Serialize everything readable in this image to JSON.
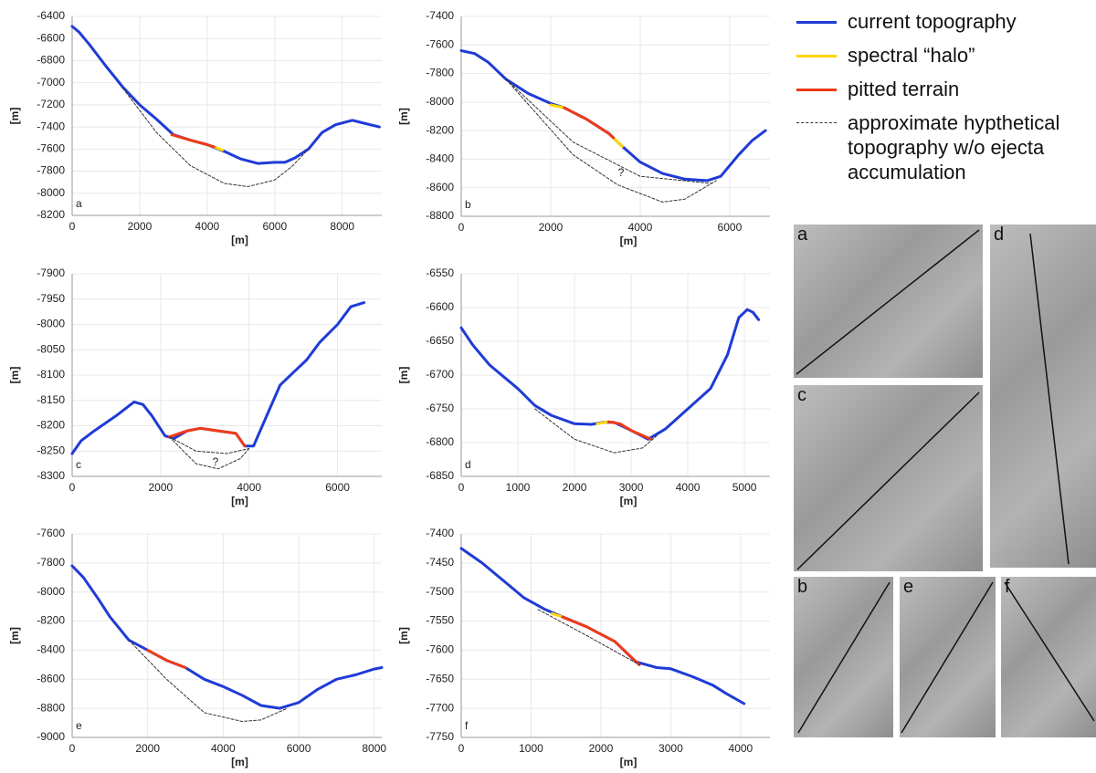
{
  "chart_data": [
    {
      "type": "line",
      "label": "a",
      "xlabel": "[m]",
      "ylabel": "[m]",
      "grid": true,
      "xlim": [
        0,
        9170
      ],
      "ylim": [
        -8200,
        -6400
      ],
      "xticks": [
        0,
        2000,
        4000,
        6000,
        8000
      ],
      "yticks": [
        -6400,
        -6600,
        -6800,
        -7000,
        -7200,
        -7400,
        -7600,
        -7800,
        -8000,
        -8200
      ],
      "series": [
        {
          "name": "current topography",
          "color": "#1f3bd6",
          "linestyle": "solid",
          "x": [
            0,
            200,
            500,
            1000,
            1500,
            2000,
            2500,
            3000,
            3500,
            4000,
            4500,
            5000,
            5500,
            6000,
            6300,
            6600,
            7000,
            7400,
            7800,
            8300,
            8700,
            9100
          ],
          "values": [
            -6490,
            -6540,
            -6650,
            -6850,
            -7040,
            -7200,
            -7330,
            -7470,
            -7520,
            -7560,
            -7620,
            -7690,
            -7730,
            -7720,
            -7720,
            -7680,
            -7600,
            -7450,
            -7380,
            -7340,
            -7370,
            -7400
          ]
        },
        {
          "name": "spectral “halo”",
          "color": "#ffd700",
          "linestyle": "solid",
          "x": [
            4200,
            4450
          ],
          "values": [
            -7580,
            -7610
          ]
        },
        {
          "name": "pitted terrain",
          "color": "#f03a17",
          "linestyle": "solid",
          "x": [
            2950,
            3500,
            4000,
            4200
          ],
          "values": [
            -7470,
            -7520,
            -7560,
            -7580
          ]
        },
        {
          "name": "approximate hypthetical topography w/o ejecta accumulation",
          "color": "#333333",
          "linestyle": "dashed",
          "x": [
            1500,
            2500,
            3500,
            4500,
            5200,
            6000,
            6500,
            7000
          ],
          "values": [
            -7050,
            -7450,
            -7750,
            -7910,
            -7940,
            -7880,
            -7760,
            -7600
          ]
        }
      ]
    },
    {
      "type": "line",
      "label": "b",
      "xlabel": "[m]",
      "ylabel": "[m]",
      "grid": true,
      "annotations": [
        "?"
      ],
      "xlim": [
        0,
        6900
      ],
      "ylim": [
        -8800,
        -7400
      ],
      "xticks": [
        0,
        2000,
        4000,
        6000
      ],
      "yticks": [
        -7400,
        -7600,
        -7800,
        -8000,
        -8200,
        -8400,
        -8600,
        -8800
      ],
      "series": [
        {
          "color": "#1f3bd6",
          "linestyle": "solid",
          "x": [
            0,
            300,
            600,
            1000,
            1500,
            2000,
            2300,
            2800,
            3300,
            3600,
            4000,
            4500,
            5000,
            5500,
            5800,
            6200,
            6500,
            6800
          ],
          "values": [
            -7640,
            -7660,
            -7720,
            -7840,
            -7940,
            -8010,
            -8040,
            -8120,
            -8220,
            -8310,
            -8420,
            -8500,
            -8540,
            -8550,
            -8520,
            -8370,
            -8270,
            -8200
          ]
        },
        {
          "color": "#ffd700",
          "linestyle": "solid",
          "x": [
            2000,
            2300,
            null,
            3400,
            3600
          ],
          "values": [
            -8020,
            -8040,
            null,
            -8250,
            -8310
          ]
        },
        {
          "color": "#f03a17",
          "linestyle": "solid",
          "x": [
            2300,
            2800,
            3300,
            3400
          ],
          "values": [
            -8040,
            -8120,
            -8220,
            -8250
          ]
        },
        {
          "color": "#333333",
          "linestyle": "dashed",
          "x": [
            1000,
            2500,
            4000,
            5600,
            null,
            1000,
            2500,
            3500,
            4500,
            5000,
            5700
          ],
          "values": [
            -7840,
            -8280,
            -8520,
            -8570,
            null,
            -7840,
            -8370,
            -8580,
            -8700,
            -8680,
            -8550
          ]
        }
      ]
    },
    {
      "type": "line",
      "label": "c",
      "xlabel": "[m]",
      "ylabel": "[m]",
      "grid": true,
      "annotations": [
        "?"
      ],
      "xlim": [
        0,
        7000
      ],
      "ylim": [
        -8300,
        -7900
      ],
      "xticks": [
        0,
        2000,
        4000,
        6000
      ],
      "yticks": [
        -7900,
        -7950,
        -8000,
        -8050,
        -8100,
        -8150,
        -8200,
        -8250,
        -8300
      ],
      "series": [
        {
          "color": "#1f3bd6",
          "linestyle": "solid",
          "x": [
            0,
            200,
            500,
            1000,
            1400,
            1600,
            1800,
            2100,
            2300,
            2600,
            2900,
            3300,
            3700,
            3900,
            4100,
            4400,
            4700,
            5000,
            5300,
            5600,
            6000,
            6300,
            6600
          ],
          "values": [
            -8255,
            -8230,
            -8210,
            -8180,
            -8153,
            -8158,
            -8180,
            -8220,
            -8225,
            -8210,
            -8205,
            -8210,
            -8215,
            -8240,
            -8240,
            -8180,
            -8120,
            -8095,
            -8070,
            -8035,
            -8000,
            -7965,
            -7957
          ]
        },
        {
          "color": "#f03a17",
          "linestyle": "solid",
          "x": [
            2200,
            2600,
            2900,
            3300,
            3700,
            3900
          ],
          "values": [
            -8222,
            -8210,
            -8205,
            -8210,
            -8215,
            -8240
          ]
        },
        {
          "color": "#333333",
          "linestyle": "dashed",
          "x": [
            2200,
            2800,
            3500,
            4000,
            null,
            2200,
            2800,
            3300,
            3800,
            4000
          ],
          "values": [
            -8222,
            -8250,
            -8255,
            -8245,
            null,
            -8222,
            -8275,
            -8285,
            -8265,
            -8245
          ]
        }
      ]
    },
    {
      "type": "line",
      "label": "d",
      "xlabel": "[m]",
      "ylabel": "[m]",
      "grid": true,
      "xlim": [
        0,
        5450
      ],
      "ylim": [
        -6850,
        -6550
      ],
      "xticks": [
        0,
        1000,
        2000,
        3000,
        4000,
        5000
      ],
      "yticks": [
        -6550,
        -6600,
        -6650,
        -6700,
        -6750,
        -6800,
        -6850
      ],
      "series": [
        {
          "color": "#1f3bd6",
          "linestyle": "solid",
          "x": [
            0,
            200,
            500,
            1000,
            1300,
            1600,
            2000,
            2300,
            2500,
            2700,
            3000,
            3300,
            3600,
            4000,
            4400,
            4700,
            4900,
            5050,
            5150,
            5250
          ],
          "values": [
            -6630,
            -6655,
            -6685,
            -6720,
            -6745,
            -6760,
            -6772,
            -6773,
            -6770,
            -6770,
            -6782,
            -6795,
            -6780,
            -6750,
            -6720,
            -6670,
            -6615,
            -6603,
            -6607,
            -6618
          ]
        },
        {
          "color": "#ffd700",
          "linestyle": "solid",
          "x": [
            2400,
            2600
          ],
          "values": [
            -6772,
            -6769
          ]
        },
        {
          "color": "#f03a17",
          "linestyle": "solid",
          "x": [
            2600,
            2800,
            3000,
            3350
          ],
          "values": [
            -6769,
            -6772,
            -6782,
            -6795
          ]
        },
        {
          "color": "#333333",
          "linestyle": "dashed",
          "x": [
            1300,
            2000,
            2700,
            3200,
            3450
          ],
          "values": [
            -6750,
            -6795,
            -6815,
            -6808,
            -6790
          ]
        }
      ]
    },
    {
      "type": "line",
      "label": "e",
      "xlabel": "[m]",
      "ylabel": "[m]",
      "grid": true,
      "xlim": [
        0,
        8200
      ],
      "ylim": [
        -9000,
        -7600
      ],
      "xticks": [
        0,
        2000,
        4000,
        6000,
        8000
      ],
      "yticks": [
        -7600,
        -7800,
        -8000,
        -8200,
        -8400,
        -8600,
        -8800,
        -9000
      ],
      "series": [
        {
          "color": "#1f3bd6",
          "linestyle": "solid",
          "x": [
            0,
            300,
            700,
            1000,
            1500,
            2000,
            2500,
            3000,
            3500,
            4000,
            4500,
            5000,
            5500,
            6000,
            6500,
            7000,
            7500,
            8000,
            8200
          ],
          "values": [
            -7820,
            -7900,
            -8050,
            -8170,
            -8330,
            -8400,
            -8470,
            -8520,
            -8600,
            -8650,
            -8710,
            -8780,
            -8800,
            -8760,
            -8670,
            -8600,
            -8570,
            -8530,
            -8520
          ]
        },
        {
          "color": "#f03a17",
          "linestyle": "solid",
          "x": [
            2000,
            2500,
            3000
          ],
          "values": [
            -8400,
            -8470,
            -8520
          ]
        },
        {
          "color": "#333333",
          "linestyle": "dashed",
          "x": [
            1500,
            2500,
            3500,
            4500,
            5000,
            5700
          ],
          "values": [
            -8330,
            -8600,
            -8830,
            -8890,
            -8880,
            -8800
          ]
        }
      ]
    },
    {
      "type": "line",
      "label": "f",
      "xlabel": "[m]",
      "ylabel": "[m]",
      "grid": true,
      "xlim": [
        0,
        4420
      ],
      "ylim": [
        -7750,
        -7400
      ],
      "xticks": [
        0,
        1000,
        2000,
        3000,
        4000
      ],
      "yticks": [
        -7400,
        -7450,
        -7500,
        -7550,
        -7600,
        -7650,
        -7700,
        -7750
      ],
      "series": [
        {
          "color": "#1f3bd6",
          "linestyle": "solid",
          "x": [
            0,
            300,
            600,
            900,
            1200,
            1400,
            1800,
            2200,
            2500,
            2800,
            3000,
            3300,
            3600,
            3800,
            4050
          ],
          "values": [
            -7425,
            -7450,
            -7480,
            -7510,
            -7530,
            -7540,
            -7560,
            -7585,
            -7620,
            -7630,
            -7632,
            -7645,
            -7660,
            -7675,
            -7692
          ]
        },
        {
          "color": "#ffd700",
          "linestyle": "solid",
          "x": [
            1300,
            1450
          ],
          "values": [
            -7537,
            -7543
          ]
        },
        {
          "color": "#f03a17",
          "linestyle": "solid",
          "x": [
            1450,
            1800,
            2200,
            2550
          ],
          "values": [
            -7543,
            -7560,
            -7585,
            -7625
          ]
        },
        {
          "color": "#333333",
          "linestyle": "dashed",
          "x": [
            1100,
            1800,
            2550
          ],
          "values": [
            -7530,
            -7575,
            -7625
          ]
        }
      ]
    }
  ],
  "images": [
    {
      "label": "a"
    },
    {
      "label": "d"
    },
    {
      "label": "c"
    },
    {
      "label": "b"
    },
    {
      "label": "e"
    },
    {
      "label": "f"
    }
  ]
}
